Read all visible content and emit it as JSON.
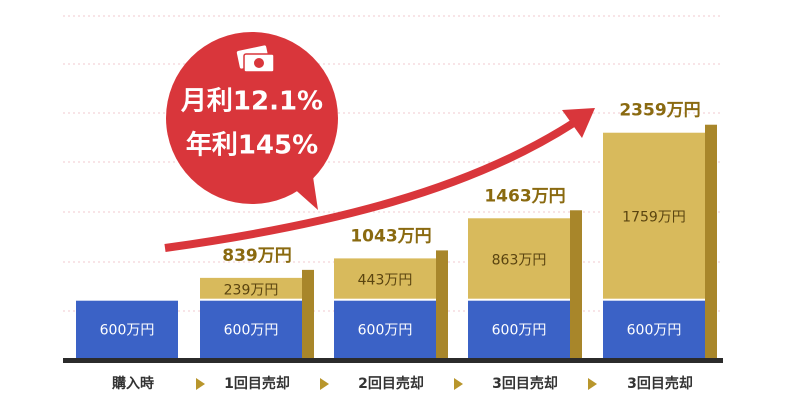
{
  "chart_data": {
    "type": "stacked-bar",
    "categories": [
      "購入時",
      "1回目売却",
      "2回目売却",
      "3回目売却",
      "3回目売却"
    ],
    "series": [
      {
        "color": "#3b62c6",
        "values": [
          600,
          600,
          600,
          600,
          600
        ],
        "value_labels": [
          "600万円",
          "600万円",
          "600万円",
          "600万円",
          "600万円"
        ]
      },
      {
        "color": "#d8ba5c",
        "values": [
          null,
          239,
          443,
          863,
          1759
        ],
        "value_labels": [
          null,
          "239万円",
          "443万円",
          "863万円",
          "1759万円"
        ]
      }
    ],
    "total_labels": [
      null,
      "839万円",
      "1043万円",
      "1463万円",
      "2359万円"
    ],
    "bubble_lines": [
      "月利12.1%",
      "年利145%"
    ]
  }
}
